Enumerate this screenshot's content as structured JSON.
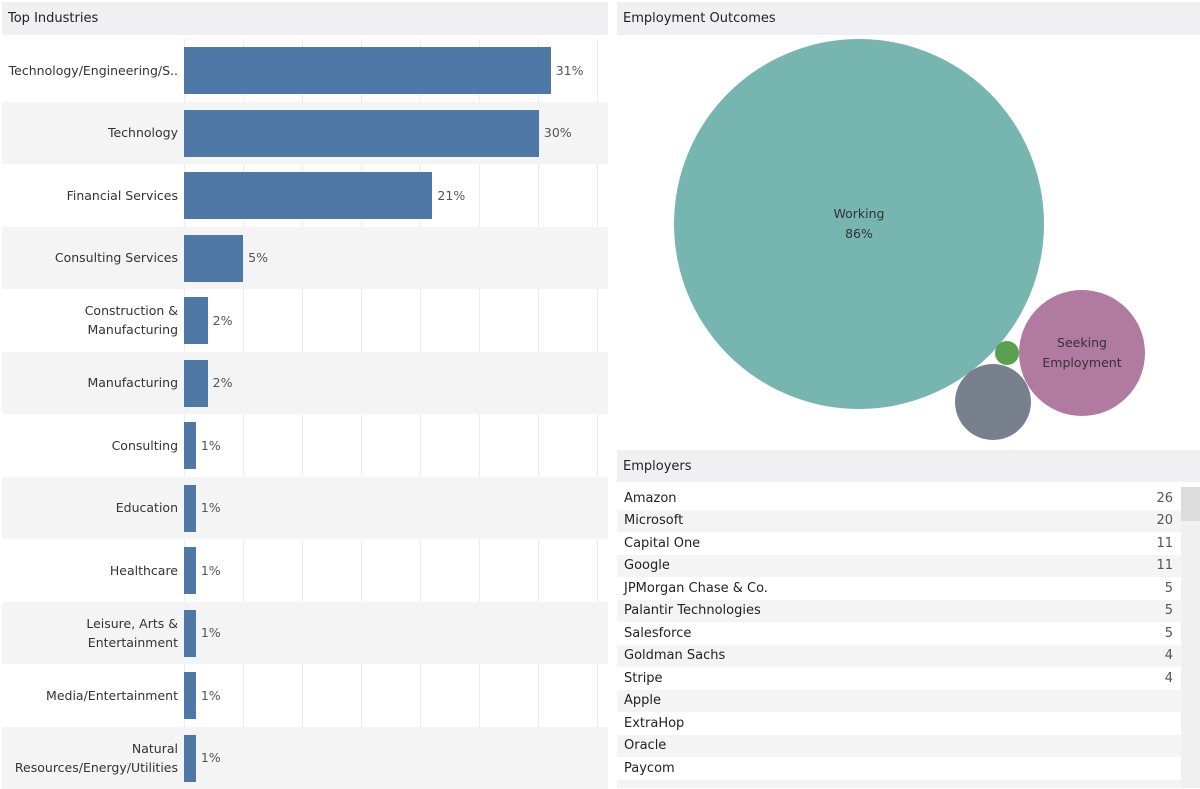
{
  "industries": {
    "title": "Top Industries",
    "rows": [
      {
        "label": "Technology/Engineering/S..",
        "value": 31,
        "text": "31%"
      },
      {
        "label": "Technology",
        "value": 30,
        "text": "30%"
      },
      {
        "label": "Financial Services",
        "value": 21,
        "text": "21%"
      },
      {
        "label": "Consulting Services",
        "value": 5,
        "text": "5%"
      },
      {
        "label": "Construction & Manufacturing",
        "value": 2,
        "text": "2%"
      },
      {
        "label": "Manufacturing",
        "value": 2,
        "text": "2%"
      },
      {
        "label": "Consulting",
        "value": 1,
        "text": "1%"
      },
      {
        "label": "Education",
        "value": 1,
        "text": "1%"
      },
      {
        "label": "Healthcare",
        "value": 1,
        "text": "1%"
      },
      {
        "label": "Leisure, Arts & Entertainment",
        "value": 1,
        "text": "1%"
      },
      {
        "label": "Media/Entertainment",
        "value": 1,
        "text": "1%"
      },
      {
        "label": "Natural Resources/Energy/Utilities",
        "value": 1,
        "text": "1%"
      }
    ]
  },
  "outcomes": {
    "title": "Employment Outcomes",
    "working": {
      "label": "Working",
      "pct": "86%"
    },
    "seeking": {
      "label": "Seeking Employment"
    }
  },
  "employers": {
    "title": "Employers",
    "rows": [
      [
        "Amazon",
        "26"
      ],
      [
        "Microsoft",
        "20"
      ],
      [
        "Capital One",
        "11"
      ],
      [
        "Google",
        "11"
      ],
      [
        "JPMorgan Chase & Co.",
        "5"
      ],
      [
        "Palantir Technologies",
        "5"
      ],
      [
        "Salesforce",
        "5"
      ],
      [
        "Goldman Sachs",
        "4"
      ],
      [
        "Stripe",
        "4"
      ],
      [
        "Apple",
        ""
      ],
      [
        "ExtraHop",
        ""
      ],
      [
        "Oracle",
        ""
      ],
      [
        "Paycom",
        ""
      ],
      [
        "",
        ""
      ]
    ]
  },
  "colors": {
    "bar": "#4e79a7",
    "working": "#76b5b0",
    "seeking": "#b07aa1",
    "other": "#79808d",
    "green": "#59a14f"
  }
}
